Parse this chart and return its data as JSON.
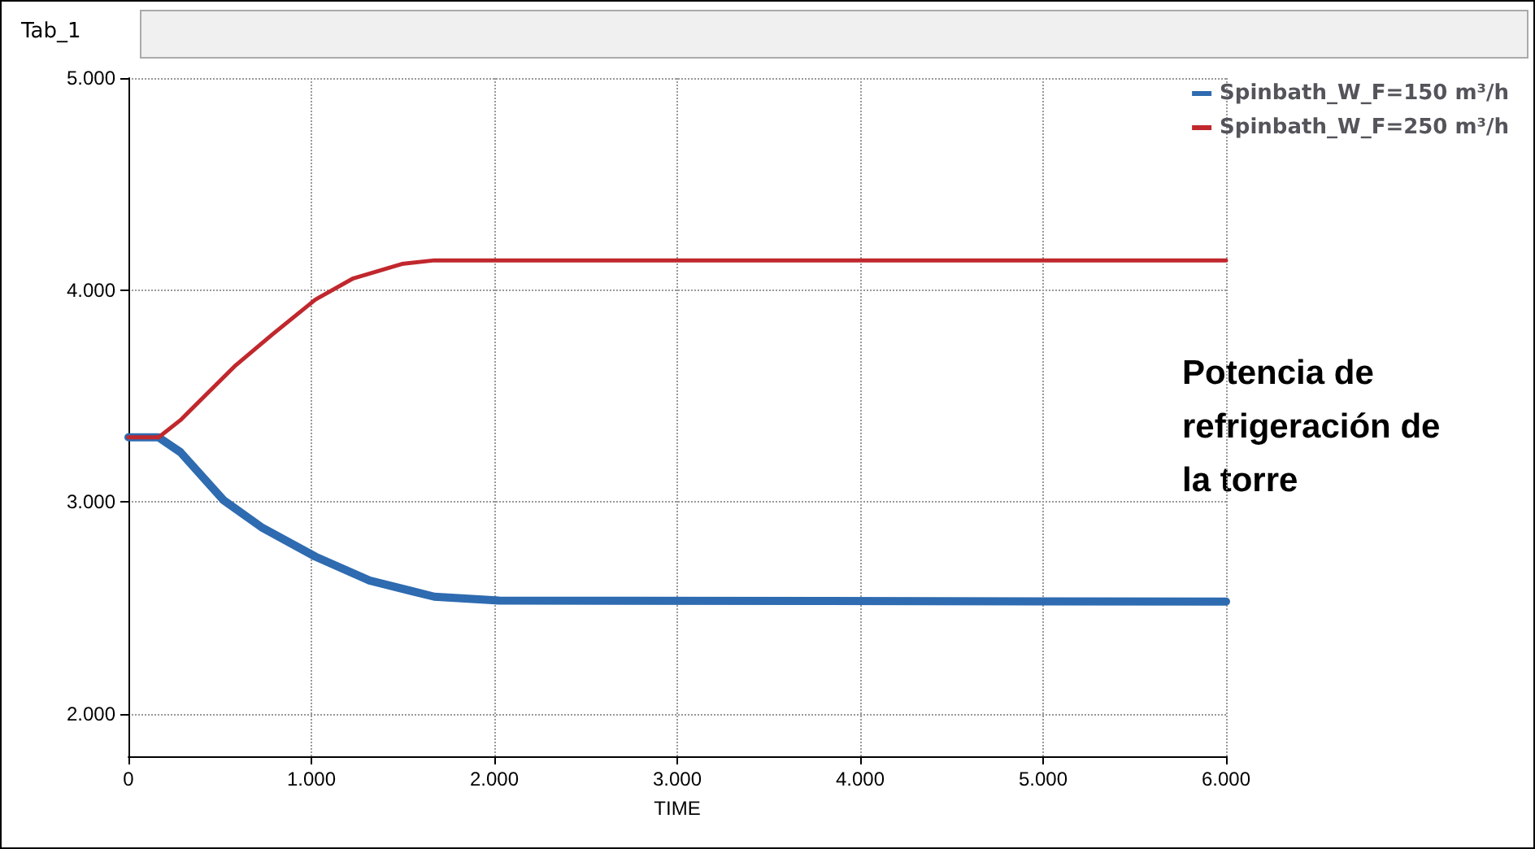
{
  "chart_data": {
    "type": "line",
    "xlabel": "TIME",
    "annotations": [
      "Tab_1",
      "Potencia de refrigeración de la torre"
    ],
    "xlim": [
      0,
      6000
    ],
    "ylim": [
      1800,
      5000
    ],
    "xticks": [
      {
        "value": 0,
        "label": "0"
      },
      {
        "value": 1000,
        "label": "1.000"
      },
      {
        "value": 2000,
        "label": "2.000"
      },
      {
        "value": 3000,
        "label": "3.000"
      },
      {
        "value": 4000,
        "label": "4.000"
      },
      {
        "value": 5000,
        "label": "5.000"
      },
      {
        "value": 6000,
        "label": "6.000"
      }
    ],
    "yticks": [
      {
        "value": 2000,
        "label": "2.000"
      },
      {
        "value": 3000,
        "label": "3.000"
      },
      {
        "value": 4000,
        "label": "4.000"
      },
      {
        "value": 5000,
        "label": "5.000"
      }
    ],
    "grid": true,
    "legend": "top right",
    "marker": "none",
    "line_style": "solid",
    "series": [
      {
        "name": "Spinbath_W_F=150 m³/h",
        "color": "#2e6bb0",
        "x": [
          0,
          165,
          284,
          520,
          727,
          1022,
          1318,
          1672,
          2027,
          6000
        ],
        "values": [
          3305,
          3305,
          3235,
          3008,
          2881,
          2742,
          2629,
          2553,
          2535,
          2530
        ]
      },
      {
        "name": "Spinbath_W_F=250 m³/h",
        "color": "#c0282d",
        "x": [
          0,
          165,
          284,
          579,
          786,
          1022,
          1229,
          1495,
          1672,
          6000
        ],
        "values": [
          3305,
          3305,
          3386,
          3639,
          3790,
          3955,
          4055,
          4123,
          4140,
          4140
        ]
      }
    ]
  }
}
